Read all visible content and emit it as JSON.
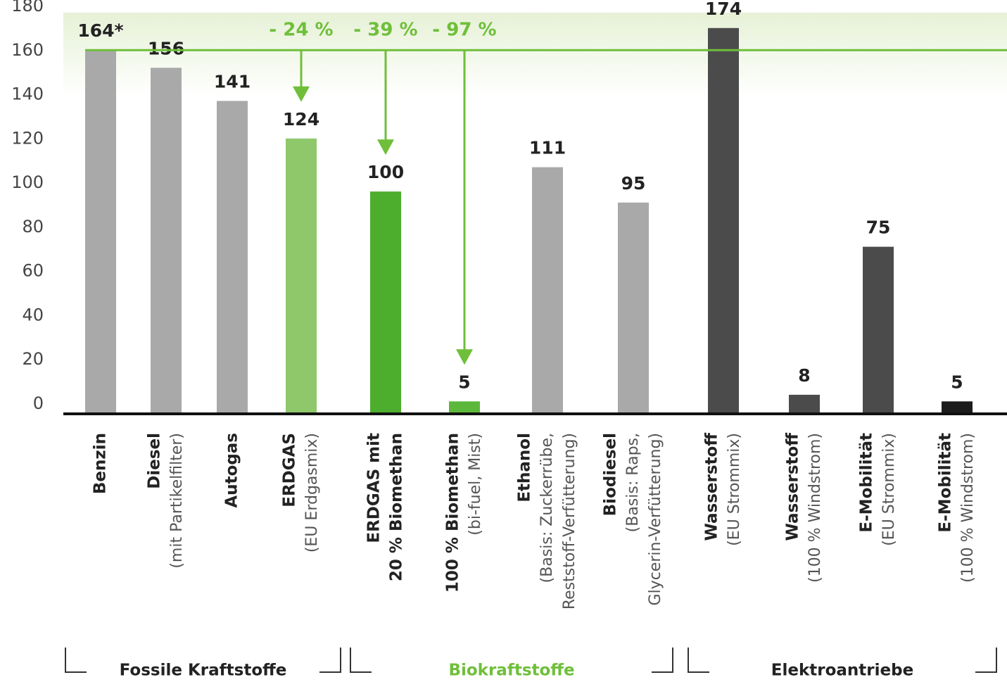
{
  "chart_data": {
    "type": "bar",
    "categories": [
      {
        "name": [
          "Benzin"
        ],
        "detail": []
      },
      {
        "name": [
          "Diesel"
        ],
        "detail": [
          "(mit Partikelfilter)"
        ]
      },
      {
        "name": [
          "Autogas"
        ],
        "detail": []
      },
      {
        "name": [
          "ERDGAS"
        ],
        "detail": [
          "(EU Erdgasmix)"
        ]
      },
      {
        "name": [
          "ERDGAS mit",
          "20 % Biomethan"
        ],
        "detail": []
      },
      {
        "name": [
          "100 % Biomethan"
        ],
        "detail": [
          "(bi-fuel, Mist)"
        ]
      },
      {
        "name": [
          "Ethanol"
        ],
        "detail": [
          "(Basis: Zuckerrübe,",
          "Reststoff-Verfütterung)"
        ]
      },
      {
        "name": [
          "Biodiesel"
        ],
        "detail": [
          "(Basis: Raps,",
          "Glycerin-Verfütterung)"
        ]
      },
      {
        "name": [
          "Wasserstoff"
        ],
        "detail": [
          "(EU Strommix)"
        ]
      },
      {
        "name": [
          "Wasserstoff"
        ],
        "detail": [
          "(100 % Windstrom)"
        ]
      },
      {
        "name": [
          "E-Mobilität"
        ],
        "detail": [
          "(EU Strommix)"
        ]
      },
      {
        "name": [
          "E-Mobilität"
        ],
        "detail": [
          "(100 % Windstrom)"
        ]
      }
    ],
    "values": [
      164,
      156,
      141,
      124,
      100,
      5,
      111,
      95,
      174,
      8,
      75,
      5
    ],
    "value_labels": [
      "164*",
      "156",
      "141",
      "124",
      "100",
      "5",
      "111",
      "95",
      "174",
      "8",
      "75",
      "5"
    ],
    "colors": [
      "#a9a9a9",
      "#a9a9a9",
      "#a9a9a9",
      "#8fc86a",
      "#4cae2c",
      "#5cb83a",
      "#a9a9a9",
      "#a9a9a9",
      "#4b4b4b",
      "#4b4b4b",
      "#4b4b4b",
      "#1c1c1c"
    ],
    "ylim": [
      0,
      180
    ],
    "yticks": [
      0,
      20,
      40,
      60,
      80,
      100,
      120,
      140,
      160,
      180
    ],
    "reference_line": 164,
    "annotations": [
      {
        "text": "- 24 %",
        "category": 3
      },
      {
        "text": "- 39 %",
        "category": 4
      },
      {
        "text": "- 97 %",
        "category": 5
      }
    ],
    "groups": [
      {
        "name": "Fossile Kraftstoffe",
        "from": 0,
        "to": 3,
        "color": "#222222"
      },
      {
        "name": "Biokraftstoffe",
        "from": 4,
        "to": 7,
        "color": "#6fbf3a"
      },
      {
        "name": "Elektroantriebe",
        "from": 8,
        "to": 11,
        "color": "#222222"
      }
    ]
  }
}
